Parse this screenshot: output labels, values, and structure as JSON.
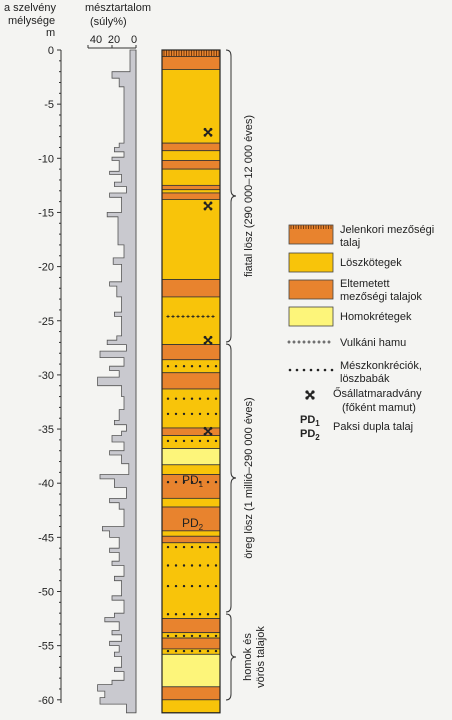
{
  "header": {
    "depth_title_line1": "a szelvény",
    "depth_title_line2": "mélysége",
    "depth_unit": "m",
    "lime_title_line1": "mésztartalom",
    "lime_title_line2": "(súly%)",
    "lime_ticks": [
      "40",
      "20",
      "0"
    ]
  },
  "depth_ticks": [
    "0",
    "-5",
    "-10",
    "-15",
    "-20",
    "-25",
    "-30",
    "-35",
    "-40",
    "-45",
    "-50",
    "-55",
    "-60"
  ],
  "brackets": {
    "young": "fiatal lösz (290 000–12 000 éves)",
    "old": "öreg lösz (1 millió–290 000 éves)",
    "sand_line1": "homok és",
    "sand_line2": "vörös talajok"
  },
  "column_labels": {
    "pd1": "PD",
    "pd1_sub": "1",
    "pd2": "PD",
    "pd2_sub": "2"
  },
  "legend": {
    "modern_soil_line1": "Jelenkori mezőségi",
    "modern_soil_line2": "talaj",
    "loess": "Löszkötegek",
    "buried_line1": "Eltemetett",
    "buried_line2": "mezőségi talajok",
    "sand": "Homokrétegek",
    "ash": "Vulkáni hamu",
    "concretion_line1": "Mészkonkréciók,",
    "concretion_line2": "löszbabák",
    "fossil_line1": "Ősállatmaradvány",
    "fossil_line2": "(főként mamut)",
    "pd_line1": "PD",
    "pd_line1_sub": "1",
    "pd_line2": "PD",
    "pd_line2_sub": "2",
    "pd_text": "Paksi dupla talaj"
  },
  "colors": {
    "loess": "#f8c40a",
    "buried_soil": "#e8832e",
    "sand": "#fdf57a",
    "modern_soil": "#e8832e",
    "profile_fill": "#c9c9cf"
  },
  "layers": [
    {
      "type": "modern",
      "top": 0,
      "bottom": -0.6
    },
    {
      "type": "buried",
      "top": -0.6,
      "bottom": -1.8
    },
    {
      "type": "loess",
      "top": -1.8,
      "bottom": -8.6
    },
    {
      "type": "buried",
      "top": -8.6,
      "bottom": -9.3
    },
    {
      "type": "loess",
      "top": -9.3,
      "bottom": -10.2
    },
    {
      "type": "buried",
      "top": -10.2,
      "bottom": -11.0
    },
    {
      "type": "loess",
      "top": -11.0,
      "bottom": -12.5
    },
    {
      "type": "buried",
      "top": -12.5,
      "bottom": -12.9
    },
    {
      "type": "loess",
      "top": -12.9,
      "bottom": -13.2
    },
    {
      "type": "buried",
      "top": -13.2,
      "bottom": -13.8
    },
    {
      "type": "loess",
      "top": -13.8,
      "bottom": -21.2
    },
    {
      "type": "buried",
      "top": -21.2,
      "bottom": -22.8
    },
    {
      "type": "loess",
      "top": -22.8,
      "bottom": -27.2
    },
    {
      "type": "buried",
      "top": -27.2,
      "bottom": -28.6
    },
    {
      "type": "loess",
      "top": -28.6,
      "bottom": -29.8
    },
    {
      "type": "buried",
      "top": -29.8,
      "bottom": -31.3
    },
    {
      "type": "loess",
      "top": -31.3,
      "bottom": -34.9
    },
    {
      "type": "buried",
      "top": -34.9,
      "bottom": -35.6
    },
    {
      "type": "loess",
      "top": -35.6,
      "bottom": -36.8
    },
    {
      "type": "sand",
      "top": -36.8,
      "bottom": -38.3
    },
    {
      "type": "loess",
      "top": -38.3,
      "bottom": -39.2
    },
    {
      "type": "buried",
      "top": -39.2,
      "bottom": -41.4
    },
    {
      "type": "loess",
      "top": -41.4,
      "bottom": -42.2
    },
    {
      "type": "buried",
      "top": -42.2,
      "bottom": -44.4
    },
    {
      "type": "loess",
      "top": -44.4,
      "bottom": -44.9
    },
    {
      "type": "buried",
      "top": -44.9,
      "bottom": -45.5
    },
    {
      "type": "loess",
      "top": -45.5,
      "bottom": -52.5
    },
    {
      "type": "buried",
      "top": -52.5,
      "bottom": -53.8
    },
    {
      "type": "loess",
      "top": -53.8,
      "bottom": -54.3
    },
    {
      "type": "buried",
      "top": -54.3,
      "bottom": -55.3
    },
    {
      "type": "loess",
      "top": -55.3,
      "bottom": -55.8
    },
    {
      "type": "sand",
      "top": -55.8,
      "bottom": -58.8
    },
    {
      "type": "buried",
      "top": -58.8,
      "bottom": -60.0
    },
    {
      "type": "loess",
      "top": -60.0,
      "bottom": -61.2
    }
  ],
  "ash_depths": [
    -24.6
  ],
  "concretion_depths": [
    -29.2,
    -32.2,
    -33.6,
    -36.1,
    -39.9,
    -45.9,
    -47.6,
    -49.5,
    -52.1,
    -54.1,
    -55.5
  ],
  "fossil_depths": [
    -7.6,
    -14.4,
    -26.8,
    -35.2
  ],
  "lime_profile": [
    [
      0,
      5
    ],
    [
      -2,
      5
    ],
    [
      -2,
      20
    ],
    [
      -2.6,
      20
    ],
    [
      -2.6,
      14
    ],
    [
      -3.4,
      14
    ],
    [
      -3.4,
      10
    ],
    [
      -8.6,
      10
    ],
    [
      -8.6,
      14
    ],
    [
      -9,
      14
    ],
    [
      -9,
      18
    ],
    [
      -9.4,
      18
    ],
    [
      -9.4,
      10
    ],
    [
      -9.9,
      10
    ],
    [
      -9.9,
      20
    ],
    [
      -10.2,
      20
    ],
    [
      -10.2,
      14
    ],
    [
      -11.2,
      14
    ],
    [
      -11.2,
      22
    ],
    [
      -11.5,
      22
    ],
    [
      -11.5,
      12
    ],
    [
      -12.2,
      12
    ],
    [
      -12.2,
      18
    ],
    [
      -12.6,
      18
    ],
    [
      -12.6,
      8
    ],
    [
      -13.2,
      8
    ],
    [
      -13.2,
      22
    ],
    [
      -13.6,
      22
    ],
    [
      -13.6,
      12
    ],
    [
      -15,
      12
    ],
    [
      -15,
      24
    ],
    [
      -15.4,
      24
    ],
    [
      -15.4,
      15
    ],
    [
      -18,
      15
    ],
    [
      -18,
      10
    ],
    [
      -19.2,
      10
    ],
    [
      -19.2,
      19
    ],
    [
      -19.8,
      19
    ],
    [
      -19.8,
      12
    ],
    [
      -21.4,
      12
    ],
    [
      -21.4,
      22
    ],
    [
      -21.8,
      22
    ],
    [
      -21.8,
      16
    ],
    [
      -22.8,
      16
    ],
    [
      -22.8,
      12
    ],
    [
      -24.2,
      12
    ],
    [
      -24.2,
      18
    ],
    [
      -24.6,
      18
    ],
    [
      -24.6,
      12
    ],
    [
      -26.4,
      12
    ],
    [
      -26.4,
      16
    ],
    [
      -26.8,
      16
    ],
    [
      -26.8,
      24
    ],
    [
      -27.2,
      24
    ],
    [
      -27.2,
      8
    ],
    [
      -27.8,
      8
    ],
    [
      -27.8,
      30
    ],
    [
      -28.4,
      30
    ],
    [
      -28.4,
      10
    ],
    [
      -29.2,
      10
    ],
    [
      -29.2,
      22
    ],
    [
      -29.6,
      22
    ],
    [
      -29.6,
      14
    ],
    [
      -30.2,
      14
    ],
    [
      -30.2,
      32
    ],
    [
      -31,
      32
    ],
    [
      -31,
      12
    ],
    [
      -32,
      12
    ],
    [
      -32,
      10
    ],
    [
      -33.2,
      10
    ],
    [
      -33.2,
      14
    ],
    [
      -34.2,
      14
    ],
    [
      -34.2,
      18
    ],
    [
      -34.6,
      18
    ],
    [
      -34.6,
      8
    ],
    [
      -35.2,
      8
    ],
    [
      -35.2,
      12
    ],
    [
      -35.6,
      12
    ],
    [
      -35.6,
      20
    ],
    [
      -36.2,
      20
    ],
    [
      -36.2,
      10
    ],
    [
      -37,
      10
    ],
    [
      -37,
      22
    ],
    [
      -37.4,
      22
    ],
    [
      -37.4,
      12
    ],
    [
      -38.2,
      12
    ],
    [
      -38.2,
      6
    ],
    [
      -39.2,
      6
    ],
    [
      -39.2,
      30
    ],
    [
      -39.6,
      30
    ],
    [
      -39.6,
      18
    ],
    [
      -40.4,
      18
    ],
    [
      -40.4,
      8
    ],
    [
      -41.4,
      8
    ],
    [
      -41.4,
      22
    ],
    [
      -41.8,
      22
    ],
    [
      -41.8,
      14
    ],
    [
      -42.4,
      14
    ],
    [
      -42.4,
      10
    ],
    [
      -44,
      10
    ],
    [
      -44,
      28
    ],
    [
      -44.4,
      28
    ],
    [
      -44.4,
      22
    ],
    [
      -45,
      22
    ],
    [
      -45,
      14
    ],
    [
      -46,
      14
    ],
    [
      -46,
      22
    ],
    [
      -46.4,
      22
    ],
    [
      -46.4,
      14
    ],
    [
      -47.2,
      14
    ],
    [
      -47.2,
      20
    ],
    [
      -47.6,
      20
    ],
    [
      -47.6,
      10
    ],
    [
      -48.6,
      10
    ],
    [
      -48.6,
      18
    ],
    [
      -49,
      18
    ],
    [
      -49,
      12
    ],
    [
      -50.4,
      12
    ],
    [
      -50.4,
      20
    ],
    [
      -50.8,
      20
    ],
    [
      -50.8,
      10
    ],
    [
      -52,
      10
    ],
    [
      -52,
      18
    ],
    [
      -52.4,
      18
    ],
    [
      -52.4,
      26
    ],
    [
      -52.8,
      26
    ],
    [
      -52.8,
      14
    ],
    [
      -53.6,
      14
    ],
    [
      -53.6,
      20
    ],
    [
      -54,
      20
    ],
    [
      -54,
      12
    ],
    [
      -54.6,
      12
    ],
    [
      -54.6,
      22
    ],
    [
      -55,
      22
    ],
    [
      -55,
      14
    ],
    [
      -55.6,
      14
    ],
    [
      -55.6,
      18
    ],
    [
      -56,
      18
    ],
    [
      -56,
      12
    ],
    [
      -57,
      12
    ],
    [
      -57,
      18
    ],
    [
      -57.4,
      18
    ],
    [
      -57.4,
      10
    ],
    [
      -58.2,
      10
    ],
    [
      -58.2,
      20
    ],
    [
      -58.6,
      20
    ],
    [
      -58.6,
      32
    ],
    [
      -59.2,
      32
    ],
    [
      -59.2,
      26
    ],
    [
      -59.8,
      26
    ],
    [
      -59.8,
      30
    ],
    [
      -60.4,
      30
    ],
    [
      -60.4,
      8
    ],
    [
      -61.2,
      8
    ],
    [
      -61.2,
      0
    ]
  ],
  "lime_range": [
    0,
    50
  ],
  "depth_range": [
    0,
    -61.2
  ]
}
